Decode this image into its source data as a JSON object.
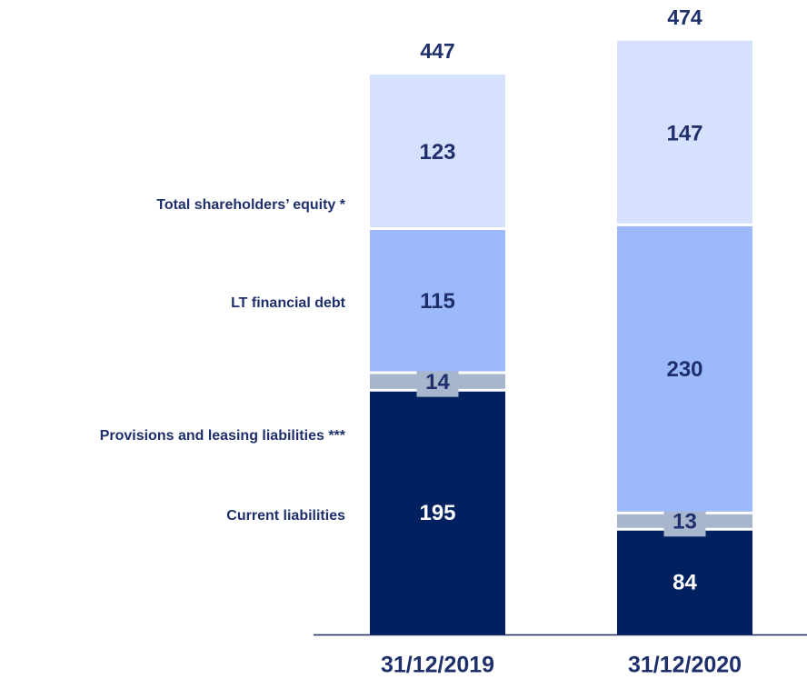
{
  "chart_data": {
    "type": "stacked_bar",
    "categories": [
      "31/12/2019",
      "31/12/2020"
    ],
    "series": [
      {
        "name": "Current liabilities",
        "color": "#00205f",
        "values": [
          195,
          84
        ]
      },
      {
        "name": "Provisions and leasing liabilities ***",
        "color": "#a7b5cd",
        "values": [
          14,
          13
        ]
      },
      {
        "name": "LT financial debt",
        "color": "#9cb9fb",
        "values": [
          115,
          230
        ]
      },
      {
        "name": "Total shareholders’ equity  *",
        "color": "#d6e2fd",
        "values": [
          123,
          147
        ]
      }
    ],
    "totals": [
      447,
      474
    ]
  }
}
